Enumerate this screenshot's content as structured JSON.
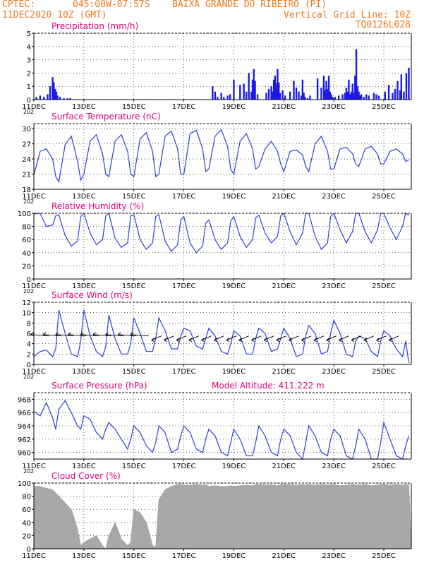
{
  "header": {
    "source": "CPTEC:",
    "coords": "045:00W-07:57S",
    "station": "BAIXA GRANDE DO RIBEIRO (PI)",
    "datetime": "11DEC2020 10Z (GMT)",
    "grid_note": "Vertical Grid Line: 10Z",
    "code": "TQ0126L028"
  },
  "x_axis": {
    "ticks": [
      "11DEC",
      "13DEC",
      "15DEC",
      "17DEC",
      "19DEC",
      "21DEC",
      "23DEC",
      "25DEC"
    ],
    "tick_days": [
      0,
      2,
      4,
      6,
      8,
      10,
      12,
      14
    ],
    "range_days": [
      0,
      15.1
    ],
    "sub_label": "202"
  },
  "colors": {
    "line": "#2b3fd6",
    "bar": "#1a1ae6",
    "cloud": "#a8a8a8",
    "title": "#e0007a",
    "header": "#ee7a1c",
    "grid": "#000000"
  },
  "chart_data": [
    {
      "id": "precip",
      "type": "bar",
      "title": "Precipitation (mm/h)",
      "ylim": [
        0,
        5
      ],
      "yticks": [
        0,
        1,
        2,
        3,
        4,
        5
      ],
      "x_days": [
        0.1,
        0.25,
        0.4,
        0.55,
        0.65,
        0.75,
        0.8,
        0.85,
        0.9,
        0.95,
        1.05,
        1.2,
        1.35,
        1.45,
        7.15,
        7.25,
        7.35,
        7.5,
        7.6,
        7.75,
        7.85,
        8.0,
        8.25,
        8.4,
        8.5,
        8.6,
        8.7,
        8.75,
        8.8,
        8.85,
        8.95,
        9.3,
        9.4,
        9.5,
        9.55,
        9.6,
        9.65,
        9.7,
        9.75,
        9.8,
        9.85,
        9.95,
        10.05,
        10.25,
        10.4,
        10.5,
        10.6,
        10.7,
        10.75,
        10.8,
        10.85,
        10.95,
        11.05,
        11.35,
        11.5,
        11.6,
        11.65,
        11.7,
        11.75,
        11.8,
        11.85,
        11.9,
        11.95,
        12.05,
        12.2,
        12.35,
        12.45,
        12.5,
        12.55,
        12.6,
        12.65,
        12.7,
        12.75,
        12.8,
        12.85,
        12.9,
        12.95,
        13.0,
        13.05,
        13.1,
        13.2,
        13.3,
        13.4,
        13.6,
        13.7,
        13.8,
        14.05,
        14.2,
        14.35,
        14.45,
        14.55,
        14.65,
        14.7,
        14.8,
        14.9,
        15.0
      ],
      "values": [
        0.2,
        0.3,
        0.2,
        0.4,
        1.0,
        1.7,
        1.3,
        0.8,
        0.6,
        0.3,
        0.2,
        0.1,
        0.1,
        0.1,
        1.0,
        0.6,
        0.2,
        0.5,
        0.2,
        0.3,
        0.4,
        1.5,
        1.1,
        1.2,
        0.6,
        2.0,
        0.6,
        1.5,
        2.3,
        1.4,
        0.4,
        0.5,
        0.8,
        1.0,
        0.6,
        1.5,
        1.8,
        1.2,
        2.3,
        1.3,
        0.5,
        0.7,
        0.3,
        0.6,
        1.4,
        0.9,
        0.6,
        0.3,
        1.5,
        0.5,
        0.2,
        0.1,
        0.3,
        1.6,
        0.9,
        1.8,
        0.7,
        1.4,
        0.8,
        1.8,
        0.6,
        0.4,
        0.2,
        0.2,
        0.3,
        0.4,
        0.5,
        0.9,
        0.6,
        1.5,
        0.4,
        0.6,
        1.2,
        0.5,
        1.8,
        3.8,
        1.0,
        0.6,
        0.3,
        0.4,
        0.2,
        0.4,
        0.3,
        0.5,
        0.4,
        0.3,
        0.6,
        1.1,
        0.5,
        0.8,
        1.4,
        0.7,
        1.9,
        0.6,
        2.0,
        2.4
      ]
    },
    {
      "id": "temp",
      "type": "line",
      "title": "Surface Temperature (nC)",
      "ylim": [
        18,
        31
      ],
      "yticks": [
        18,
        21,
        24,
        27,
        30
      ],
      "y_per_day": [
        [
          20.8,
          25.5,
          26.0,
          24.0,
          20.5
        ],
        [
          19.5,
          26.8,
          28.5,
          23.5,
          19.8
        ],
        [
          21.0,
          27.5,
          28.8,
          25.0,
          21.0
        ],
        [
          20.5,
          27.5,
          28.8,
          25.5,
          21.0
        ],
        [
          20.5,
          28.0,
          29.2,
          25.5,
          20.5
        ],
        [
          21.0,
          28.5,
          29.5,
          26.0,
          21.0
        ],
        [
          21.0,
          29.0,
          29.7,
          26.0,
          21.5
        ],
        [
          22.0,
          28.5,
          29.8,
          26.5,
          22.0
        ],
        [
          21.0,
          27.5,
          29.0,
          26.0,
          22.0
        ],
        [
          22.5,
          26.0,
          27.5,
          25.5,
          23.0
        ],
        [
          21.5,
          25.5,
          25.8,
          24.8,
          22.5
        ],
        [
          21.5,
          27.0,
          28.5,
          25.5,
          22.0
        ],
        [
          22.0,
          26.0,
          26.3,
          25.0,
          23.0
        ],
        [
          22.5,
          26.0,
          26.5,
          25.0,
          23.0
        ],
        [
          23.0,
          25.5,
          26.0,
          25.0,
          23.5
        ],
        [
          23.8,
          23.8,
          23.8,
          23.8,
          23.8
        ]
      ]
    },
    {
      "id": "rh",
      "type": "line",
      "title": "Relative Humidity (%)",
      "ylim": [
        0,
        100
      ],
      "yticks": [
        0,
        20,
        40,
        60,
        80,
        100
      ],
      "y_per_day": [
        [
          99,
          100,
          80,
          82,
          96
        ],
        [
          98,
          66,
          50,
          58,
          95
        ],
        [
          100,
          70,
          52,
          60,
          96
        ],
        [
          100,
          62,
          48,
          55,
          96
        ],
        [
          98,
          60,
          45,
          55,
          95
        ],
        [
          98,
          58,
          42,
          52,
          90
        ],
        [
          95,
          55,
          40,
          50,
          85
        ],
        [
          90,
          60,
          45,
          55,
          88
        ],
        [
          95,
          65,
          48,
          60,
          93
        ],
        [
          97,
          70,
          55,
          65,
          96
        ],
        [
          100,
          72,
          52,
          70,
          100
        ],
        [
          100,
          65,
          45,
          55,
          95
        ],
        [
          100,
          75,
          55,
          72,
          100
        ],
        [
          100,
          72,
          55,
          75,
          100
        ],
        [
          100,
          78,
          60,
          80,
          100
        ],
        [
          97,
          97,
          97,
          97,
          97
        ]
      ]
    },
    {
      "id": "wind",
      "type": "line",
      "title": "Surface Wind (m/s)",
      "ylim": [
        0,
        12
      ],
      "yticks": [
        0,
        2,
        4,
        6,
        8,
        10,
        12
      ],
      "y_per_day": [
        [
          1.5,
          2.5,
          2.8,
          1.5,
          3.0
        ],
        [
          10.5,
          6.0,
          2.0,
          1.5,
          4.5
        ],
        [
          10.5,
          5.5,
          2.5,
          1.5,
          3.5
        ],
        [
          9.5,
          5.0,
          2.0,
          2.0,
          4.0
        ],
        [
          9.0,
          6.0,
          2.5,
          2.5,
          5.0
        ],
        [
          9.0,
          6.5,
          3.0,
          3.0,
          5.5
        ],
        [
          7.0,
          6.5,
          3.5,
          3.0,
          5.0
        ],
        [
          7.0,
          5.5,
          2.5,
          2.0,
          4.0
        ],
        [
          6.5,
          5.5,
          2.0,
          2.0,
          5.0
        ],
        [
          7.0,
          6.0,
          2.5,
          3.0,
          5.0
        ],
        [
          7.0,
          5.0,
          1.5,
          2.0,
          5.5
        ],
        [
          7.5,
          6.0,
          2.0,
          2.5,
          6.0
        ],
        [
          8.5,
          6.0,
          2.0,
          1.5,
          4.5
        ],
        [
          5.5,
          5.0,
          2.5,
          1.5,
          4.5
        ],
        [
          6.5,
          5.5,
          3.0,
          1.5,
          4.5
        ],
        [
          0.3,
          0.3,
          0.3,
          0.3,
          0.3
        ]
      ],
      "barbs_note": "wind direction arrows shown along y=5.5"
    },
    {
      "id": "pres",
      "type": "line",
      "title": "Surface Pressure (hPa)",
      "extra_label": "Model Altitude: 411.222  m",
      "ylim": [
        959,
        969
      ],
      "yticks": [
        960,
        962,
        964,
        966,
        968
      ],
      "y_per_day": [
        [
          966.2,
          965.5,
          967.5,
          965.2,
          963.5
        ],
        [
          966.5,
          967.8,
          966.0,
          964.0,
          963.5
        ],
        [
          965.5,
          965.0,
          963.0,
          962.0,
          963.5
        ],
        [
          964.5,
          963.5,
          962.0,
          960.5,
          962.0
        ],
        [
          964.0,
          963.0,
          961.0,
          960.0,
          961.5
        ],
        [
          964.0,
          963.0,
          960.0,
          960.5,
          962.5
        ],
        [
          964.0,
          963.0,
          960.5,
          960.0,
          962.0
        ],
        [
          963.5,
          962.5,
          960.0,
          959.5,
          961.5
        ],
        [
          963.5,
          962.0,
          959.5,
          959.5,
          961.5
        ],
        [
          964.0,
          962.5,
          960.0,
          959.5,
          962.0
        ],
        [
          963.5,
          962.5,
          960.0,
          959.0,
          961.5
        ],
        [
          964.0,
          962.5,
          960.0,
          959.5,
          962.0
        ],
        [
          963.5,
          962.5,
          959.5,
          959.0,
          961.0
        ],
        [
          963.5,
          962.0,
          959.0,
          959.0,
          961.5
        ],
        [
          964.5,
          962.0,
          959.5,
          959.0,
          961.0
        ],
        [
          962.5,
          962.5,
          962.5,
          962.5,
          962.5
        ]
      ]
    },
    {
      "id": "cloud",
      "type": "area",
      "title": "Cloud Cover (%)",
      "ylim": [
        0,
        100
      ],
      "yticks": [
        0,
        20,
        40,
        60,
        80,
        100
      ],
      "y_per_day": [
        [
          95,
          95,
          92,
          90,
          85
        ],
        [
          80,
          70,
          60,
          30,
          5
        ],
        [
          10,
          15,
          20,
          5,
          0
        ],
        [
          20,
          40,
          15,
          5,
          10
        ],
        [
          60,
          55,
          40,
          5,
          3
        ],
        [
          75,
          90,
          95,
          98,
          98
        ],
        [
          97,
          97,
          98,
          97,
          98
        ],
        [
          95,
          96,
          95,
          95,
          96
        ],
        [
          95,
          96,
          97,
          96,
          98
        ],
        [
          98,
          97,
          98,
          96,
          98
        ],
        [
          98,
          98,
          97,
          98,
          97
        ],
        [
          98,
          97,
          98,
          97,
          98
        ],
        [
          98,
          96,
          97,
          98,
          97
        ],
        [
          97,
          98,
          96,
          97,
          98
        ],
        [
          98,
          97,
          98,
          97,
          98
        ],
        [
          98,
          98,
          98,
          98,
          98
        ]
      ]
    }
  ]
}
